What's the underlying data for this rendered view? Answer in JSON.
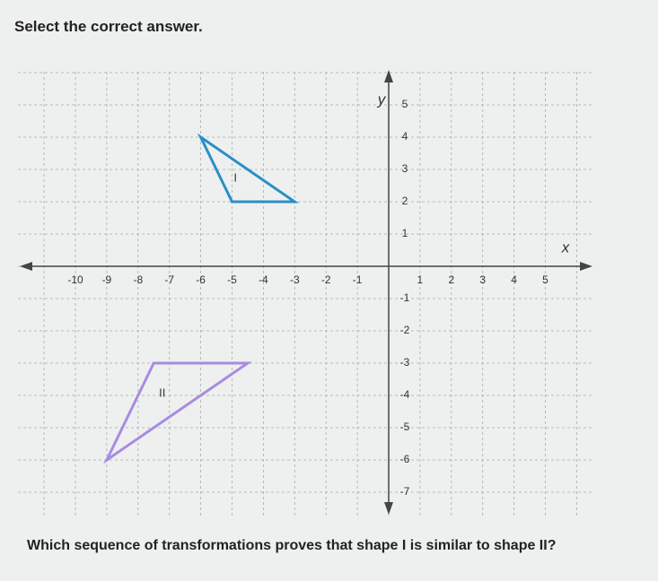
{
  "prompt": "Select the correct answer.",
  "graph": {
    "x_label": "x",
    "y_label": "y",
    "x_ticks": [
      -10,
      -9,
      -8,
      -7,
      -6,
      -5,
      -4,
      -3,
      -2,
      -1,
      1,
      2,
      3,
      4,
      5
    ],
    "y_ticks": [
      5,
      4,
      3,
      2,
      1,
      -1,
      -2,
      -3,
      -4,
      -5,
      -6,
      -7
    ],
    "shapes": [
      {
        "label": "I",
        "color": "#2a8fc7",
        "vertices": [
          [
            -6,
            4
          ],
          [
            -5,
            2
          ],
          [
            -3,
            2
          ]
        ]
      },
      {
        "label": "II",
        "color": "#a98be0",
        "vertices": [
          [
            -7.5,
            -3
          ],
          [
            -4.5,
            -3
          ],
          [
            -9,
            -6
          ]
        ]
      }
    ]
  },
  "question": "Which sequence of transformations proves that shape I is similar to shape II?"
}
